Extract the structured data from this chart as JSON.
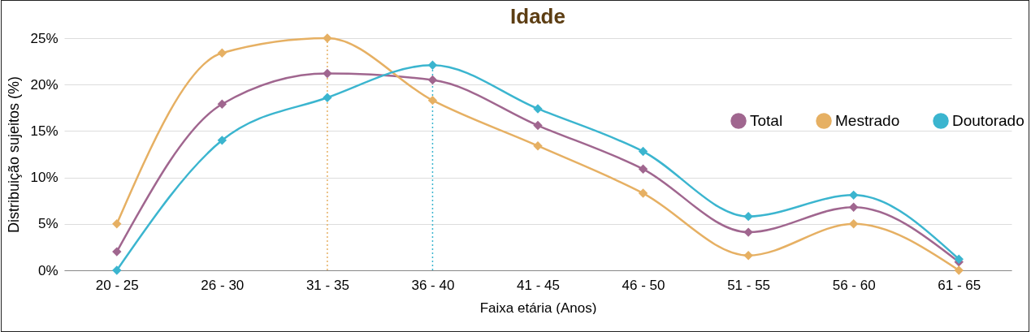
{
  "chart_data": {
    "type": "line",
    "title": "Idade",
    "xlabel": "Faixa etária (Anos)",
    "ylabel": "Distribuição sujeitos (%)",
    "categories": [
      "20 - 25",
      "26 - 30",
      "31 - 35",
      "36 - 40",
      "41 - 45",
      "46 - 50",
      "51 - 55",
      "56 - 60",
      "61 - 65"
    ],
    "series": [
      {
        "name": "Total",
        "color": "#a0668f",
        "values": [
          2.0,
          17.9,
          21.2,
          20.5,
          15.6,
          10.9,
          4.1,
          6.8,
          0.9
        ]
      },
      {
        "name": "Mestrado",
        "color": "#e6b063",
        "values": [
          5.0,
          23.4,
          25.0,
          18.3,
          13.4,
          8.3,
          1.6,
          5.0,
          0
        ]
      },
      {
        "name": "Doutorado",
        "color": "#3bb5cf",
        "values": [
          0,
          14.0,
          18.6,
          22.1,
          17.4,
          12.8,
          5.8,
          8.1,
          1.2
        ]
      }
    ],
    "ref_lines": [
      {
        "axis": "x",
        "value": "31 - 35",
        "color": "#e6b063",
        "line_style": "dotted"
      },
      {
        "axis": "x",
        "value": "36 - 40",
        "color": "#3bb5cf",
        "line_style": "dotted"
      }
    ],
    "ylim": [
      0,
      25
    ],
    "yticks": [
      {
        "value": 0,
        "label": "0%"
      },
      {
        "value": 5,
        "label": "5%"
      },
      {
        "value": 10,
        "label": "10%"
      },
      {
        "value": 15,
        "label": "15%"
      },
      {
        "value": 20,
        "label": "20%"
      },
      {
        "value": 25,
        "label": "25%"
      }
    ],
    "grid": "y",
    "legend": "top right",
    "marker": "diamond",
    "line_style": "solid"
  }
}
